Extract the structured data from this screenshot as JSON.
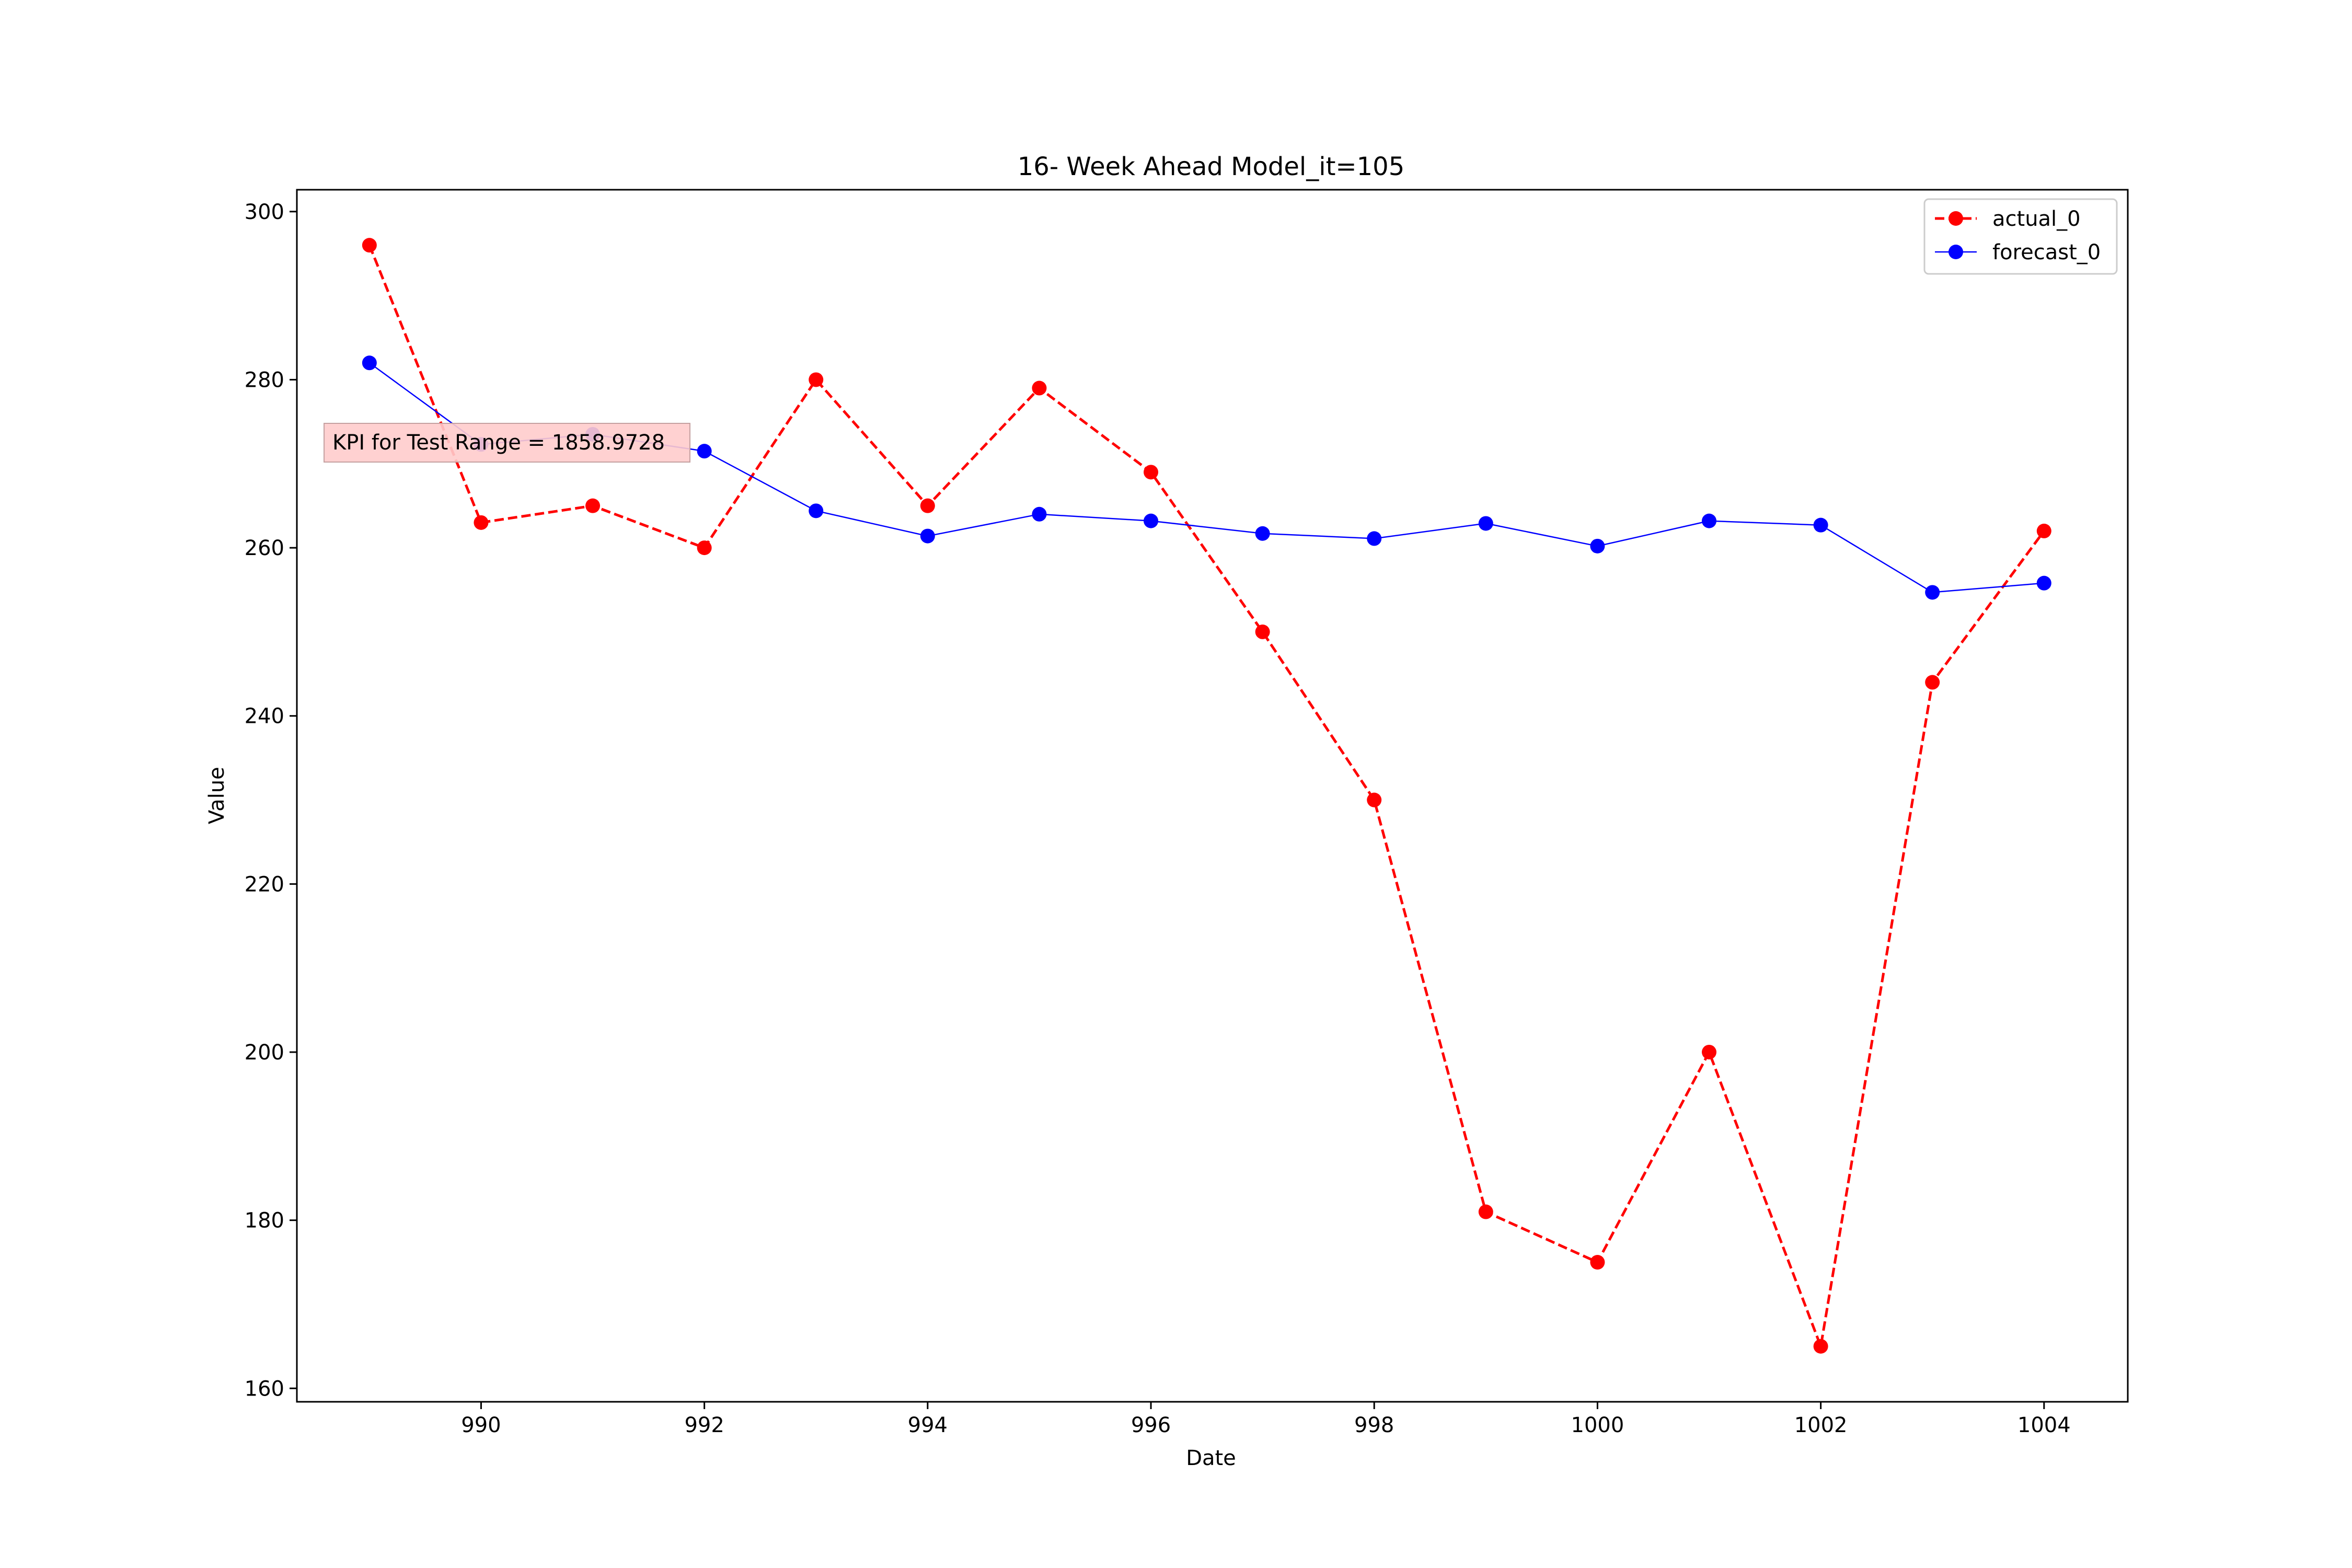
{
  "chart_data": {
    "type": "line",
    "title": "16- Week Ahead Model_it=105",
    "xlabel": "Date",
    "ylabel": "Value",
    "xlim": [
      988.35,
      1004.75
    ],
    "ylim": [
      158.4,
      302.6
    ],
    "xticks": [
      990,
      992,
      994,
      996,
      998,
      1000,
      1002,
      1004
    ],
    "yticks": [
      160,
      180,
      200,
      220,
      240,
      260,
      280,
      300
    ],
    "grid": false,
    "legend_position": "top-right",
    "x": [
      989,
      990,
      991,
      992,
      993,
      994,
      995,
      996,
      997,
      998,
      999,
      1000,
      1001,
      1002,
      1003,
      1004
    ],
    "series": [
      {
        "name": "actual_0",
        "color": "#ff0000",
        "linestyle": "dashed",
        "marker": "circle",
        "values": [
          296,
          263,
          265,
          260,
          280,
          265,
          279,
          269,
          250,
          230,
          181,
          175,
          200,
          165,
          244,
          262
        ]
      },
      {
        "name": "forecast_0",
        "color": "#0000ff",
        "linestyle": "solid",
        "marker": "circle",
        "values": [
          282,
          272.3,
          273.5,
          271.5,
          264.4,
          261.4,
          264,
          263.2,
          261.7,
          261.1,
          262.9,
          260.2,
          263.2,
          262.7,
          254.7,
          255.8
        ]
      }
    ],
    "annotation": {
      "text": "KPI for Test Range = 1858.9728",
      "background": "#ffcccc",
      "position": "upper-left"
    }
  }
}
